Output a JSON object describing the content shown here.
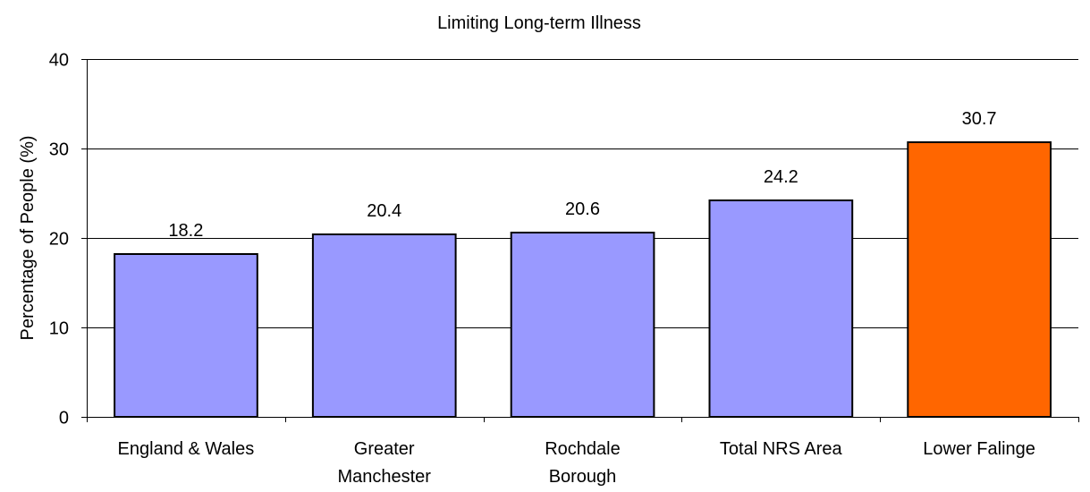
{
  "chart_data": {
    "type": "bar",
    "title": "Limiting Long-term Illness",
    "xlabel": "",
    "ylabel": "Percentage of People (%)",
    "ylim": [
      0,
      40
    ],
    "yticks": [
      0,
      10,
      20,
      30,
      40
    ],
    "grid": true,
    "categories": [
      [
        "England & Wales"
      ],
      [
        "Greater",
        "Manchester"
      ],
      [
        "Rochdale",
        "Borough"
      ],
      [
        "Total NRS Area"
      ],
      [
        "Lower Falinge"
      ]
    ],
    "values": [
      18.2,
      20.4,
      20.6,
      24.2,
      30.7
    ],
    "data_labels": [
      "18.2",
      "20.4",
      "20.6",
      "24.2",
      "30.7"
    ],
    "bar_colors": [
      "#9999ff",
      "#9999ff",
      "#9999ff",
      "#9999ff",
      "#ff6600"
    ]
  }
}
